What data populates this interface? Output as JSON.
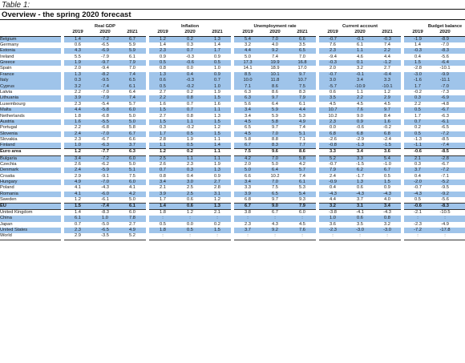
{
  "caption": "Table 1:",
  "subtitle": "Overview - the spring 2020 forecast",
  "groups": [
    "Real GDP",
    "Inflation",
    "Unemployment rate",
    "Current account",
    "Budget balance"
  ],
  "years": [
    "2019",
    "2020",
    "2021"
  ],
  "rows": [
    {
      "name": "Belgium",
      "style": "hl",
      "v": [
        "1.4",
        "-7.2",
        "6.7",
        "1.2",
        "0.2",
        "1.3",
        "5.4",
        "7.0",
        "6.6",
        "-0.7",
        "-0.1",
        "-0.3",
        "-1.9",
        "-8.9",
        "-4.2"
      ]
    },
    {
      "name": "Germany",
      "style": "",
      "v": [
        "0.6",
        "-6.5",
        "5.9",
        "1.4",
        "0.3",
        "1.4",
        "3.2",
        "4.0",
        "3.5",
        "7.6",
        "6.1",
        "7.4",
        "1.4",
        "-7.0",
        "-1.5"
      ]
    },
    {
      "name": "Estonia",
      "style": "hl",
      "v": [
        "4.3",
        "-6.9",
        "5.9",
        "2.3",
        "0.7",
        "1.7",
        "4.4",
        "9.2",
        "6.5",
        "2.3",
        "1.1",
        "2.2",
        "-0.3",
        "-8.3",
        "-3.4"
      ]
    },
    {
      "name": "Ireland",
      "style": "",
      "v": [
        "5.5",
        "-7.9",
        "6.1",
        "0.9",
        "-0.3",
        "0.9",
        "5.0",
        "7.4",
        "7.0",
        "-9.4",
        "4.6",
        "4.4",
        "0.4",
        "-5.6",
        "-2.9"
      ]
    },
    {
      "name": "Greece",
      "style": "hl",
      "v": [
        "1.9",
        "-9.7",
        "7.9",
        "0.5",
        "-0.6",
        "0.5",
        "17.3",
        "19.9",
        "16.8",
        "-0.3",
        "0.1",
        "-1.2",
        "1.5",
        "-6.4",
        "-2.1"
      ]
    },
    {
      "name": "Spain",
      "style": "",
      "v": [
        "2.0",
        "-9.4",
        "7.0",
        "0.8",
        "0.0",
        "1.0",
        "14.1",
        "18.9",
        "17.0",
        "2.0",
        "3.2",
        "2.7",
        "-2.8",
        "-10.1",
        "-6.7"
      ]
    },
    {
      "name": "France",
      "style": "hl",
      "v": [
        "1.3",
        "-8.2",
        "7.4",
        "1.3",
        "0.4",
        "0.9",
        "8.5",
        "10.1",
        "9.7",
        "-0.7",
        "-0.1",
        "-0.4",
        "-3.0",
        "-9.9",
        "-4.0"
      ]
    },
    {
      "name": "Italy",
      "style": "hl",
      "v": [
        "0.3",
        "-9.5",
        "6.5",
        "0.6",
        "-0.3",
        "0.7",
        "10.0",
        "11.8",
        "10.7",
        "3.0",
        "3.4",
        "3.3",
        "-1.6",
        "-11.1",
        "-5.6"
      ]
    },
    {
      "name": "Cyprus",
      "style": "hl",
      "v": [
        "3.2",
        "-7.4",
        "6.1",
        "0.5",
        "-0.2",
        "1.0",
        "7.1",
        "8.6",
        "7.5",
        "-5.7",
        "-10.9",
        "-10.1",
        "1.7",
        "-7.0",
        "-1.8"
      ]
    },
    {
      "name": "Latvia",
      "style": "",
      "v": [
        "2.2",
        "-7.0",
        "6.4",
        "2.7",
        "0.2",
        "1.9",
        "6.3",
        "8.6",
        "8.3",
        "0.6",
        "1.1",
        "1.2",
        "-0.2",
        "-7.3",
        "-4.5"
      ]
    },
    {
      "name": "Lithuania",
      "style": "hl",
      "v": [
        "3.9",
        "-7.9",
        "7.4",
        "2.2",
        "0.8",
        "1.5",
        "6.3",
        "9.7",
        "7.9",
        "3.5",
        "2.2",
        "2.9",
        "0.3",
        "-6.9",
        "-2.7"
      ]
    },
    {
      "name": "Luxembourg",
      "style": "",
      "v": [
        "2.3",
        "-5.4",
        "5.7",
        "1.6",
        "0.7",
        "1.6",
        "5.6",
        "6.4",
        "6.1",
        "4.5",
        "4.5",
        "4.5",
        "2.2",
        "-4.8",
        "0.1"
      ]
    },
    {
      "name": "Malta",
      "style": "hl",
      "v": [
        "4.4",
        "-5.8",
        "6.0",
        "1.5",
        "0.7",
        "1.1",
        "3.4",
        "5.9",
        "4.4",
        "10.7",
        "7.6",
        "9.7",
        "0.5",
        "-6.7",
        "-2.5"
      ]
    },
    {
      "name": "Netherlands",
      "style": "",
      "v": [
        "1.8",
        "-6.8",
        "5.0",
        "2.7",
        "0.8",
        "1.3",
        "3.4",
        "5.9",
        "5.3",
        "10.2",
        "9.0",
        "8.4",
        "1.7",
        "-6.3",
        "-3.5"
      ]
    },
    {
      "name": "Austria",
      "style": "hl",
      "v": [
        "1.6",
        "-5.5",
        "5.0",
        "1.5",
        "1.1",
        "1.5",
        "4.5",
        "5.8",
        "4.9",
        "2.3",
        "0.9",
        "1.6",
        "0.7",
        "-6.1",
        "-1.9"
      ]
    },
    {
      "name": "Portugal",
      "style": "",
      "v": [
        "2.2",
        "-6.8",
        "5.8",
        "0.3",
        "-0.2",
        "1.2",
        "6.5",
        "9.7",
        "7.4",
        "0.0",
        "-0.6",
        "-0.2",
        "0.2",
        "-6.5",
        "-1.8"
      ]
    },
    {
      "name": "Slovenia",
      "style": "hl",
      "v": [
        "2.4",
        "-7.0",
        "6.7",
        "1.7",
        "0.5",
        "1.5",
        "4.5",
        "7.0",
        "5.1",
        "6.8",
        "6.8",
        "6.8",
        "0.5",
        "-7.2",
        "-2.1"
      ]
    },
    {
      "name": "Slovakia",
      "style": "",
      "v": [
        "2.3",
        "-6.7",
        "6.6",
        "2.8",
        "1.9",
        "1.1",
        "5.8",
        "8.8",
        "7.1",
        "-2.6",
        "-2.9",
        "-2.4",
        "-1.3",
        "-8.5",
        "-4.2"
      ]
    },
    {
      "name": "Finland",
      "style": "hl",
      "v": [
        "1.0",
        "-6.3",
        "3.7",
        "1.1",
        "0.5",
        "1.4",
        "6.7",
        "8.3",
        "7.7",
        "-0.8",
        "-1.3",
        "-1.5",
        "-1.1",
        "-7.4",
        "-3.4"
      ]
    },
    {
      "name": "Euro area",
      "style": "bold sep-top sep-bot",
      "v": [
        "1.2",
        "-7.7",
        "6.3",
        "1.2",
        "0.2",
        "1.1",
        "7.5",
        "9.6",
        "8.6",
        "3.3",
        "3.4",
        "3.6",
        "-0.6",
        "-8.5",
        "-3.5"
      ]
    },
    {
      "name": "Bulgaria",
      "style": "hl",
      "v": [
        "3.4",
        "-7.2",
        "6.0",
        "2.5",
        "1.1",
        "1.1",
        "4.2",
        "7.0",
        "5.8",
        "5.2",
        "3.3",
        "5.4",
        "2.1",
        "-2.8",
        "-1.8"
      ]
    },
    {
      "name": "Czechia",
      "style": "",
      "v": [
        "2.6",
        "-6.2",
        "5.0",
        "2.6",
        "2.3",
        "1.9",
        "2.0",
        "5.0",
        "4.2",
        "-0.7",
        "-1.5",
        "-1.0",
        "0.3",
        "-6.7",
        "-4.0"
      ]
    },
    {
      "name": "Denmark",
      "style": "hl",
      "v": [
        "2.4",
        "-5.9",
        "5.1",
        "0.7",
        "0.3",
        "1.3",
        "5.0",
        "6.4",
        "5.7",
        "7.9",
        "6.2",
        "6.7",
        "3.7",
        "-7.2",
        "-2.3"
      ]
    },
    {
      "name": "Croatia",
      "style": "",
      "v": [
        "2.9",
        "-9.1",
        "7.5",
        "0.8",
        "0.4",
        "0.9",
        "6.6",
        "10.2",
        "7.4",
        "2.4",
        "-1.7",
        "0.5",
        "0.4",
        "-7.1",
        "-2.2"
      ]
    },
    {
      "name": "Hungary",
      "style": "hl",
      "v": [
        "4.9",
        "-7.0",
        "6.0",
        "3.4",
        "3.0",
        "2.7",
        "3.4",
        "7.0",
        "6.1",
        "-0.9",
        "1.3",
        "1.5",
        "-2.0",
        "-5.2",
        "-4.0"
      ]
    },
    {
      "name": "Poland",
      "style": "",
      "v": [
        "4.1",
        "-4.3",
        "4.1",
        "2.1",
        "2.5",
        "2.8",
        "3.3",
        "7.5",
        "5.3",
        "0.4",
        "0.6",
        "0.9",
        "-0.7",
        "-9.5",
        "-3.8"
      ]
    },
    {
      "name": "Romania",
      "style": "hl",
      "v": [
        "4.1",
        "-6.0",
        "4.2",
        "3.9",
        "2.5",
        "3.1",
        "3.9",
        "6.5",
        "5.4",
        "-4.3",
        "-4.3",
        "-4.3",
        "-4.3",
        "-9.2",
        "-11.4"
      ]
    },
    {
      "name": "Sweden",
      "style": "",
      "v": [
        "1.2",
        "-6.1",
        "5.0",
        "1.7",
        "0.6",
        "1.2",
        "6.8",
        "9.7",
        "9.3",
        "4.4",
        "3.7",
        "4.0",
        "0.5",
        "-5.6",
        "-2.2"
      ]
    },
    {
      "name": "EU",
      "style": "hl bold sep-top sep-bot",
      "v": [
        "1.5",
        "-7.4",
        "6.1",
        "1.4",
        "0.6",
        "1.3",
        "6.7",
        "9.0",
        "7.9",
        "3.2",
        "3.1",
        "3.4",
        "-0.6",
        "-8.3",
        "-3.6"
      ]
    },
    {
      "name": "United Kingdom",
      "style": "",
      "v": [
        "1.4",
        "-8.3",
        "6.0",
        "1.8",
        "1.2",
        "2.1",
        "3.8",
        "6.7",
        "6.0",
        "-3.8",
        "-4.1",
        "-4.3",
        "-2.1",
        "-10.5",
        "-6.7"
      ]
    },
    {
      "name": "China",
      "style": "hl",
      "v": [
        "6.1",
        "1.0",
        "7.8",
        ":",
        ":",
        ":",
        ":",
        ":",
        ":",
        "1.0",
        "0.6",
        "0.8",
        ":",
        ":",
        ":"
      ]
    },
    {
      "name": "Japan",
      "style": "",
      "v": [
        "0.7",
        "-5.0",
        "2.7",
        "0.5",
        "0.0",
        "0.2",
        "2.3",
        "4.3",
        "4.5",
        "3.6",
        "3.5",
        "3.2",
        "-2.3",
        "-4.9",
        "-3.3"
      ]
    },
    {
      "name": "United States",
      "style": "hl",
      "v": [
        "2.3",
        "-6.5",
        "4.9",
        "1.8",
        "0.5",
        "1.5",
        "3.7",
        "9.2",
        "7.6",
        "-2.3",
        "-3.0",
        "-3.0",
        "-7.2",
        "-17.8",
        "-8.5"
      ]
    },
    {
      "name": "World",
      "style": "last",
      "v": [
        "2.9",
        "-3.5",
        "5.2",
        ":",
        ":",
        ":",
        ":",
        ":",
        ":",
        ":",
        ":",
        ":",
        ":",
        ":",
        ":"
      ]
    }
  ]
}
